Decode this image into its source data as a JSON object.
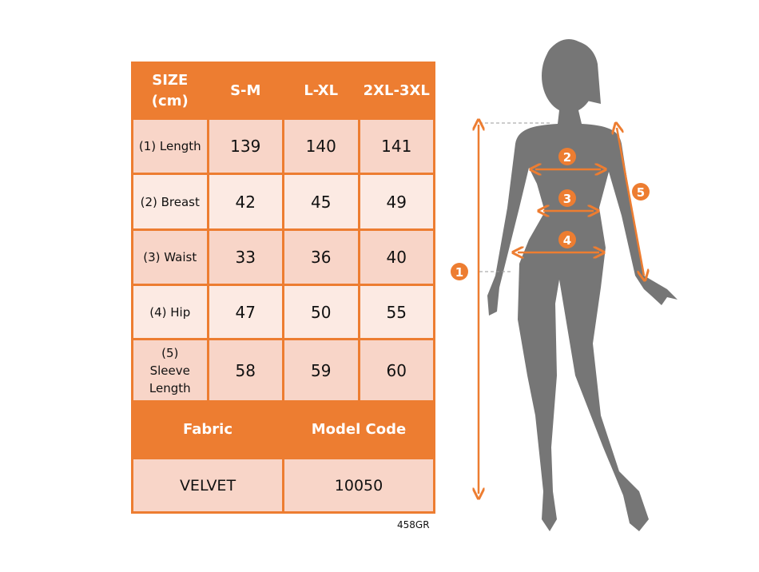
{
  "table": {
    "header": [
      "SIZE (cm)",
      "S-M",
      "L-XL",
      "2XL-3XL"
    ],
    "rows": [
      {
        "label": "(1) Length",
        "values": [
          "139",
          "140",
          "141"
        ]
      },
      {
        "label": "(2) Breast",
        "values": [
          "42",
          "45",
          "49"
        ]
      },
      {
        "label": "(3) Waist",
        "values": [
          "33",
          "36",
          "40"
        ]
      },
      {
        "label": "(4) Hip",
        "values": [
          "47",
          "50",
          "55"
        ]
      },
      {
        "label": "(5) Sleeve Length",
        "values": [
          "58",
          "59",
          "60"
        ]
      }
    ],
    "footer_header": [
      "Fabric",
      "Model Code"
    ],
    "footer_values": [
      "VELVET",
      "10050"
    ]
  },
  "product_code": "458GR",
  "markers": [
    "1",
    "2",
    "3",
    "4",
    "5"
  ],
  "colors": {
    "accent": "#ED7D31",
    "row_dark": "#F8D5C8",
    "row_light": "#FCEAE3",
    "silhouette": "#767676"
  }
}
